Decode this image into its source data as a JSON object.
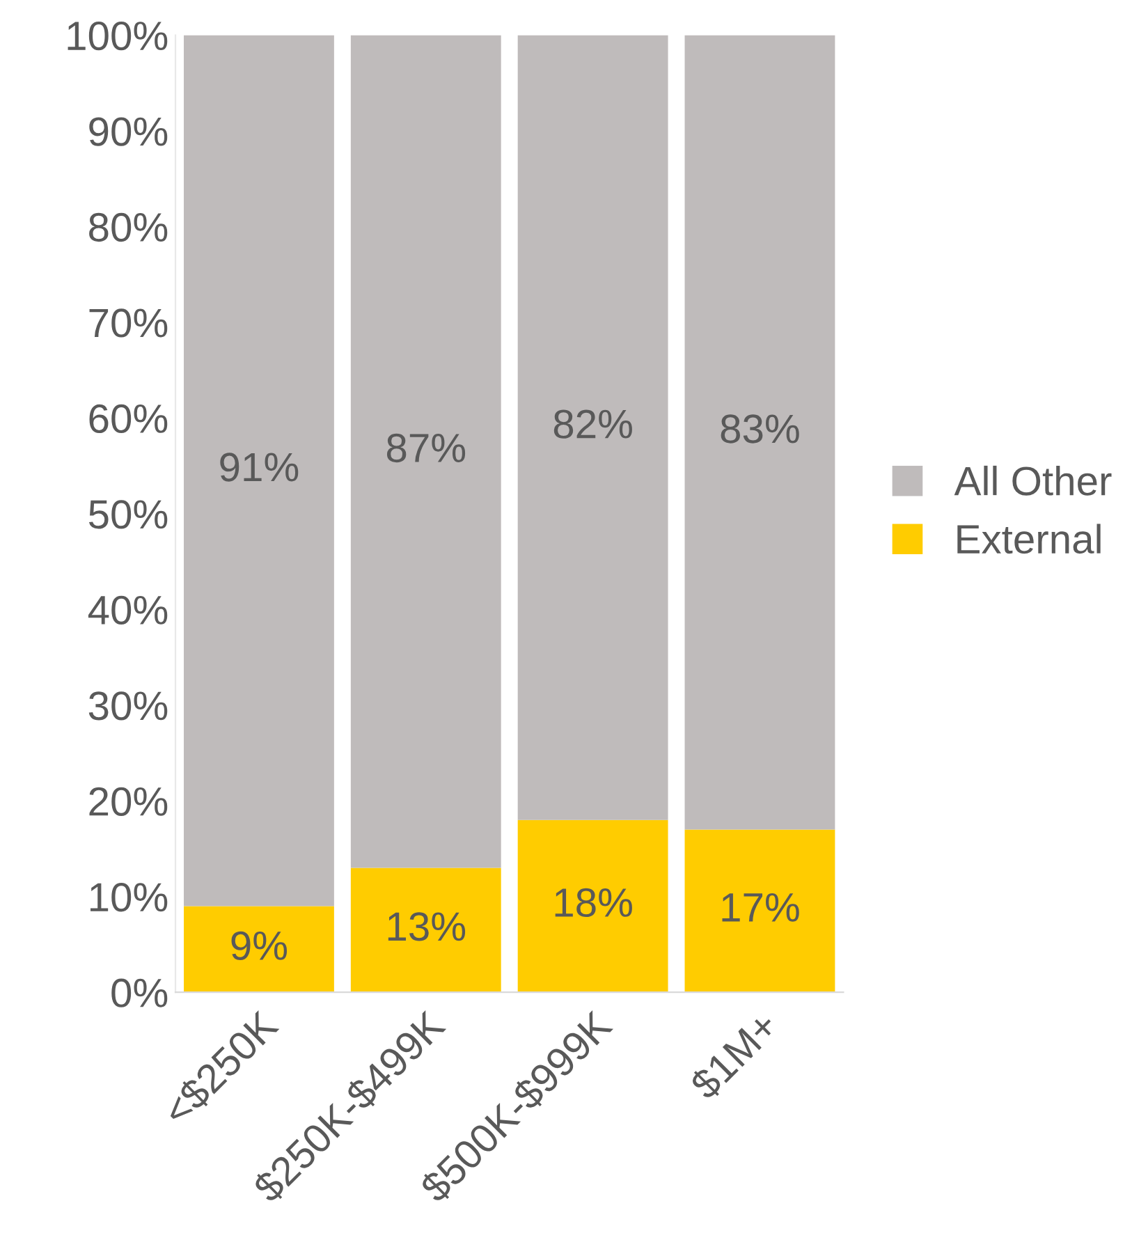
{
  "chart_data": {
    "type": "bar",
    "stacked": true,
    "categories": [
      "<$250K",
      "$250K-$499K",
      "$500K-$999K",
      "$1M+"
    ],
    "series": [
      {
        "name": "External",
        "color": "#ffcc00",
        "values": [
          9,
          13,
          18,
          17
        ],
        "value_labels": [
          "9%",
          "13%",
          "18%",
          "17%"
        ]
      },
      {
        "name": "All Other",
        "color": "#bfbbbb",
        "values": [
          91,
          87,
          82,
          83
        ],
        "value_labels": [
          "91%",
          "87%",
          "82%",
          "83%"
        ]
      }
    ],
    "ylim": [
      0,
      100
    ],
    "yticks": [
      {
        "value": 0,
        "label": "0%"
      },
      {
        "value": 10,
        "label": "10%"
      },
      {
        "value": 20,
        "label": "20%"
      },
      {
        "value": 30,
        "label": "30%"
      },
      {
        "value": 40,
        "label": "40%"
      },
      {
        "value": 50,
        "label": "50%"
      },
      {
        "value": 60,
        "label": "60%"
      },
      {
        "value": 70,
        "label": "70%"
      },
      {
        "value": 80,
        "label": "80%"
      },
      {
        "value": 90,
        "label": "90%"
      },
      {
        "value": 100,
        "label": "100%"
      }
    ],
    "grid": false,
    "legend": "right"
  }
}
